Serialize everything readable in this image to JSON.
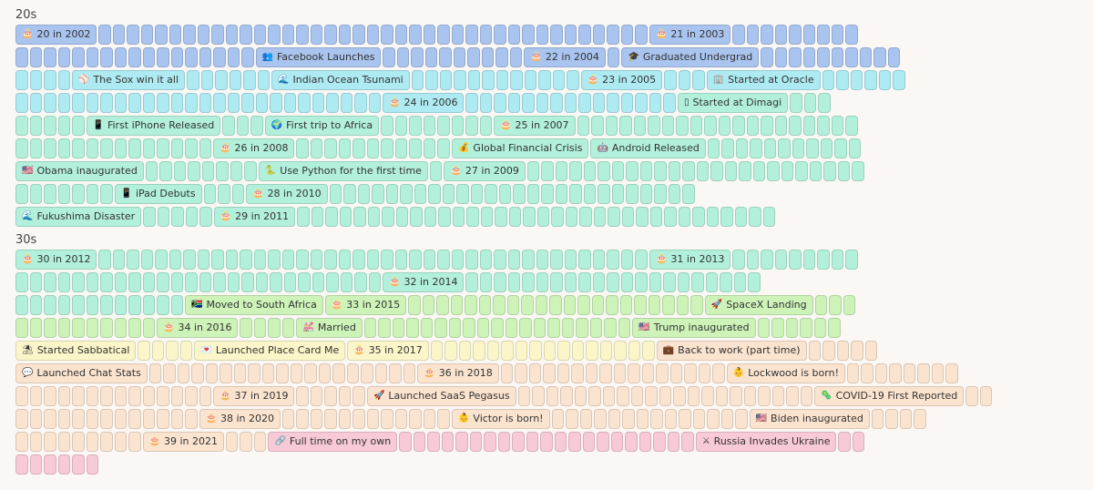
{
  "colors": {
    "blue": "#a9c4ee",
    "cyan": "#aeeaf2",
    "mint": "#b2f0dc",
    "green": "#cdf3b9",
    "yellow": "#fbf6c9",
    "peach": "#fbe4cf",
    "pink": "#f8cad5"
  },
  "decades": [
    {
      "title": "20s",
      "rows": [
        {
          "segments": [
            {
              "event": {
                "icon": "🎂",
                "icon_name": "birthday-cake-icon",
                "label": "20 in 2002"
              },
              "color": "blue"
            },
            {
              "blank": 39,
              "color": "blue"
            },
            {
              "event": {
                "icon": "🎂",
                "icon_name": "birthday-cake-icon",
                "label": "21 in 2003"
              },
              "color": "blue"
            },
            {
              "blank": 9,
              "color": "blue"
            }
          ]
        },
        {
          "segments": [
            {
              "blank": 17,
              "color": "blue"
            },
            {
              "event": {
                "icon": "👥",
                "icon_name": "people-icon",
                "label": "Facebook Launches"
              },
              "color": "blue"
            },
            {
              "blank": 10,
              "color": "blue"
            },
            {
              "event": {
                "icon": "🎂",
                "icon_name": "birthday-cake-icon",
                "label": "22 in 2004"
              },
              "color": "blue"
            },
            {
              "blank": 1,
              "color": "blue"
            },
            {
              "event": {
                "icon": "🎓",
                "icon_name": "graduation-icon",
                "label": "Graduated Undergrad"
              },
              "color": "blue"
            },
            {
              "blank": 10,
              "color": "blue"
            }
          ]
        },
        {
          "segments": [
            {
              "blank": 4,
              "color": "cyan"
            },
            {
              "event": {
                "icon": "⚾",
                "icon_name": "baseball-icon",
                "label": "The Sox win it all"
              },
              "color": "cyan"
            },
            {
              "blank": 6,
              "color": "cyan"
            },
            {
              "event": {
                "icon": "🌊",
                "icon_name": "wave-icon",
                "label": "Indian Ocean Tsunami"
              },
              "color": "cyan"
            },
            {
              "blank": 12,
              "color": "cyan"
            },
            {
              "event": {
                "icon": "🎂",
                "icon_name": "birthday-cake-icon",
                "label": "23 in 2005"
              },
              "color": "cyan"
            },
            {
              "blank": 3,
              "color": "cyan"
            },
            {
              "event": {
                "icon": "🏢",
                "icon_name": "office-building-icon",
                "label": "Started at Oracle"
              },
              "color": "cyan"
            },
            {
              "blank": 6,
              "color": "cyan"
            }
          ]
        },
        {
          "segments": [
            {
              "blank": 26,
              "color": "cyan"
            },
            {
              "event": {
                "icon": "🎂",
                "icon_name": "birthday-cake-icon",
                "label": "24 in 2006"
              },
              "color": "cyan"
            },
            {
              "blank": 15,
              "color": "cyan"
            },
            {
              "event": {
                "icon": "▯",
                "icon_name": "phone-icon",
                "label": "Started at Dimagi"
              },
              "color": "mint"
            },
            {
              "blank": 3,
              "color": "mint"
            }
          ]
        },
        {
          "segments": [
            {
              "blank": 5,
              "color": "mint"
            },
            {
              "event": {
                "icon": "📱",
                "icon_name": "iphone-icon",
                "label": "First iPhone Released"
              },
              "color": "mint"
            },
            {
              "blank": 3,
              "color": "mint"
            },
            {
              "event": {
                "icon": "🌍",
                "icon_name": "globe-africa-icon",
                "label": "First trip to Africa"
              },
              "color": "mint"
            },
            {
              "blank": 8,
              "color": "mint"
            },
            {
              "event": {
                "icon": "🎂",
                "icon_name": "birthday-cake-icon",
                "label": "25 in 2007"
              },
              "color": "mint"
            },
            {
              "blank": 20,
              "color": "mint"
            }
          ]
        },
        {
          "segments": [
            {
              "blank": 14,
              "color": "mint"
            },
            {
              "event": {
                "icon": "🎂",
                "icon_name": "birthday-cake-icon",
                "label": "26 in 2008"
              },
              "color": "mint"
            },
            {
              "blank": 11,
              "color": "mint"
            },
            {
              "event": {
                "icon": "💰",
                "icon_name": "money-bag-icon",
                "label": "Global Financial Crisis"
              },
              "color": "mint"
            },
            {
              "event": {
                "icon": "🤖",
                "icon_name": "robot-icon",
                "label": "Android Released"
              },
              "color": "mint"
            },
            {
              "blank": 11,
              "color": "mint"
            }
          ]
        },
        {
          "segments": [
            {
              "event": {
                "icon": "🇺🇸",
                "icon_name": "us-flag-icon",
                "label": "Obama inaugurated"
              },
              "color": "mint"
            },
            {
              "blank": 8,
              "color": "mint"
            },
            {
              "event": {
                "icon": "🐍",
                "icon_name": "snake-icon",
                "label": "Use Python for the first time"
              },
              "color": "mint"
            },
            {
              "blank": 1,
              "color": "mint"
            },
            {
              "event": {
                "icon": "🎂",
                "icon_name": "birthday-cake-icon",
                "label": "27 in 2009"
              },
              "color": "mint"
            },
            {
              "blank": 24,
              "color": "mint"
            }
          ]
        },
        {
          "segments": [
            {
              "blank": 7,
              "color": "mint"
            },
            {
              "event": {
                "icon": "📱",
                "icon_name": "ipad-icon",
                "label": "iPad Debuts"
              },
              "color": "mint"
            },
            {
              "blank": 3,
              "color": "mint"
            },
            {
              "event": {
                "icon": "🎂",
                "icon_name": "birthday-cake-icon",
                "label": "28 in 2010"
              },
              "color": "mint"
            },
            {
              "blank": 26,
              "color": "mint"
            }
          ]
        },
        {
          "segments": [
            {
              "event": {
                "icon": "🌊",
                "icon_name": "wave-icon",
                "label": "Fukushima Disaster"
              },
              "color": "mint"
            },
            {
              "blank": 5,
              "color": "mint"
            },
            {
              "event": {
                "icon": "🎂",
                "icon_name": "birthday-cake-icon",
                "label": "29 in 2011"
              },
              "color": "mint"
            },
            {
              "blank": 34,
              "color": "mint"
            }
          ]
        }
      ]
    },
    {
      "title": "30s",
      "rows": [
        {
          "segments": [
            {
              "event": {
                "icon": "🎂",
                "icon_name": "birthday-cake-icon",
                "label": "30 in 2012"
              },
              "color": "mint"
            },
            {
              "blank": 39,
              "color": "mint"
            },
            {
              "event": {
                "icon": "🎂",
                "icon_name": "birthday-cake-icon",
                "label": "31 in 2013"
              },
              "color": "mint"
            },
            {
              "blank": 9,
              "color": "mint"
            }
          ]
        },
        {
          "segments": [
            {
              "blank": 26,
              "color": "mint"
            },
            {
              "event": {
                "icon": "🎂",
                "icon_name": "birthday-cake-icon",
                "label": "32 in 2014"
              },
              "color": "mint"
            },
            {
              "blank": 21,
              "color": "mint"
            }
          ]
        },
        {
          "segments": [
            {
              "blank": 12,
              "color": "mint"
            },
            {
              "event": {
                "icon": "🇿🇦",
                "icon_name": "south-africa-flag-icon",
                "label": "Moved to South Africa"
              },
              "color": "green"
            },
            {
              "event": {
                "icon": "🎂",
                "icon_name": "birthday-cake-icon",
                "label": "33 in 2015"
              },
              "color": "green"
            },
            {
              "blank": 21,
              "color": "green"
            },
            {
              "event": {
                "icon": "🚀",
                "icon_name": "rocket-icon",
                "label": "SpaceX Landing"
              },
              "color": "green"
            },
            {
              "blank": 3,
              "color": "green"
            }
          ]
        },
        {
          "segments": [
            {
              "blank": 10,
              "color": "green"
            },
            {
              "event": {
                "icon": "🎂",
                "icon_name": "birthday-cake-icon",
                "label": "34 in 2016"
              },
              "color": "green"
            },
            {
              "blank": 4,
              "color": "green"
            },
            {
              "event": {
                "icon": "💒",
                "icon_name": "wedding-icon",
                "label": "Married"
              },
              "color": "green"
            },
            {
              "blank": 19,
              "color": "green"
            },
            {
              "event": {
                "icon": "🇺🇸",
                "icon_name": "us-flag-icon",
                "label": "Trump inaugurated"
              },
              "color": "green"
            },
            {
              "blank": 6,
              "color": "green"
            }
          ]
        },
        {
          "segments": [
            {
              "event": {
                "icon": "⛱",
                "icon_name": "beach-umbrella-icon",
                "label": "Started Sabbatical"
              },
              "color": "yellow"
            },
            {
              "blank": 4,
              "color": "yellow"
            },
            {
              "event": {
                "icon": "💌",
                "icon_name": "love-letter-icon",
                "label": "Launched Place Card Me"
              },
              "color": "yellow"
            },
            {
              "event": {
                "icon": "🎂",
                "icon_name": "birthday-cake-icon",
                "label": "35 in 2017"
              },
              "color": "yellow"
            },
            {
              "blank": 16,
              "color": "yellow"
            },
            {
              "event": {
                "icon": "💼",
                "icon_name": "briefcase-icon",
                "label": "Back to work (part time)"
              },
              "color": "peach"
            },
            {
              "blank": 5,
              "color": "peach"
            }
          ]
        },
        {
          "segments": [
            {
              "event": {
                "icon": "💬",
                "icon_name": "speech-bubble-icon",
                "label": "Launched Chat Stats"
              },
              "color": "peach"
            },
            {
              "blank": 19,
              "color": "peach"
            },
            {
              "event": {
                "icon": "🎂",
                "icon_name": "birthday-cake-icon",
                "label": "36 in 2018"
              },
              "color": "peach"
            },
            {
              "blank": 16,
              "color": "peach"
            },
            {
              "event": {
                "icon": "👶",
                "icon_name": "baby-icon",
                "label": "Lockwood is born!"
              },
              "color": "peach"
            },
            {
              "blank": 8,
              "color": "peach"
            }
          ]
        },
        {
          "segments": [
            {
              "blank": 14,
              "color": "peach"
            },
            {
              "event": {
                "icon": "🎂",
                "icon_name": "birthday-cake-icon",
                "label": "37 in 2019"
              },
              "color": "peach"
            },
            {
              "blank": 5,
              "color": "peach"
            },
            {
              "event": {
                "icon": "🚀",
                "icon_name": "rocket-icon",
                "label": "Launched SaaS Pegasus"
              },
              "color": "peach"
            },
            {
              "blank": 21,
              "color": "peach"
            },
            {
              "event": {
                "icon": "🦠",
                "icon_name": "virus-icon",
                "label": "COVID-19 First Reported"
              },
              "color": "peach"
            },
            {
              "blank": 2,
              "color": "peach"
            }
          ]
        },
        {
          "segments": [
            {
              "blank": 13,
              "color": "peach"
            },
            {
              "event": {
                "icon": "🎂",
                "icon_name": "birthday-cake-icon",
                "label": "38 in 2020"
              },
              "color": "peach"
            },
            {
              "blank": 12,
              "color": "peach"
            },
            {
              "event": {
                "icon": "👶",
                "icon_name": "baby-icon",
                "label": "Victor is born!"
              },
              "color": "peach"
            },
            {
              "blank": 14,
              "color": "peach"
            },
            {
              "event": {
                "icon": "🇺🇸",
                "icon_name": "us-flag-icon",
                "label": "Biden inaugurated"
              },
              "color": "peach"
            },
            {
              "blank": 4,
              "color": "peach"
            }
          ]
        },
        {
          "segments": [
            {
              "blank": 9,
              "color": "peach"
            },
            {
              "event": {
                "icon": "🎂",
                "icon_name": "birthday-cake-icon",
                "label": "39 in 2021"
              },
              "color": "peach"
            },
            {
              "blank": 3,
              "color": "peach"
            },
            {
              "event": {
                "icon": "🔗",
                "icon_name": "link-icon",
                "label": "Full time on my own"
              },
              "color": "pink"
            },
            {
              "blank": 21,
              "color": "pink"
            },
            {
              "event": {
                "icon": "⚔",
                "icon_name": "crossed-swords-icon",
                "label": "Russia Invades Ukraine"
              },
              "color": "pink"
            },
            {
              "blank": 2,
              "color": "pink"
            }
          ]
        },
        {
          "segments": [
            {
              "blank": 6,
              "color": "pink"
            }
          ]
        }
      ]
    }
  ]
}
